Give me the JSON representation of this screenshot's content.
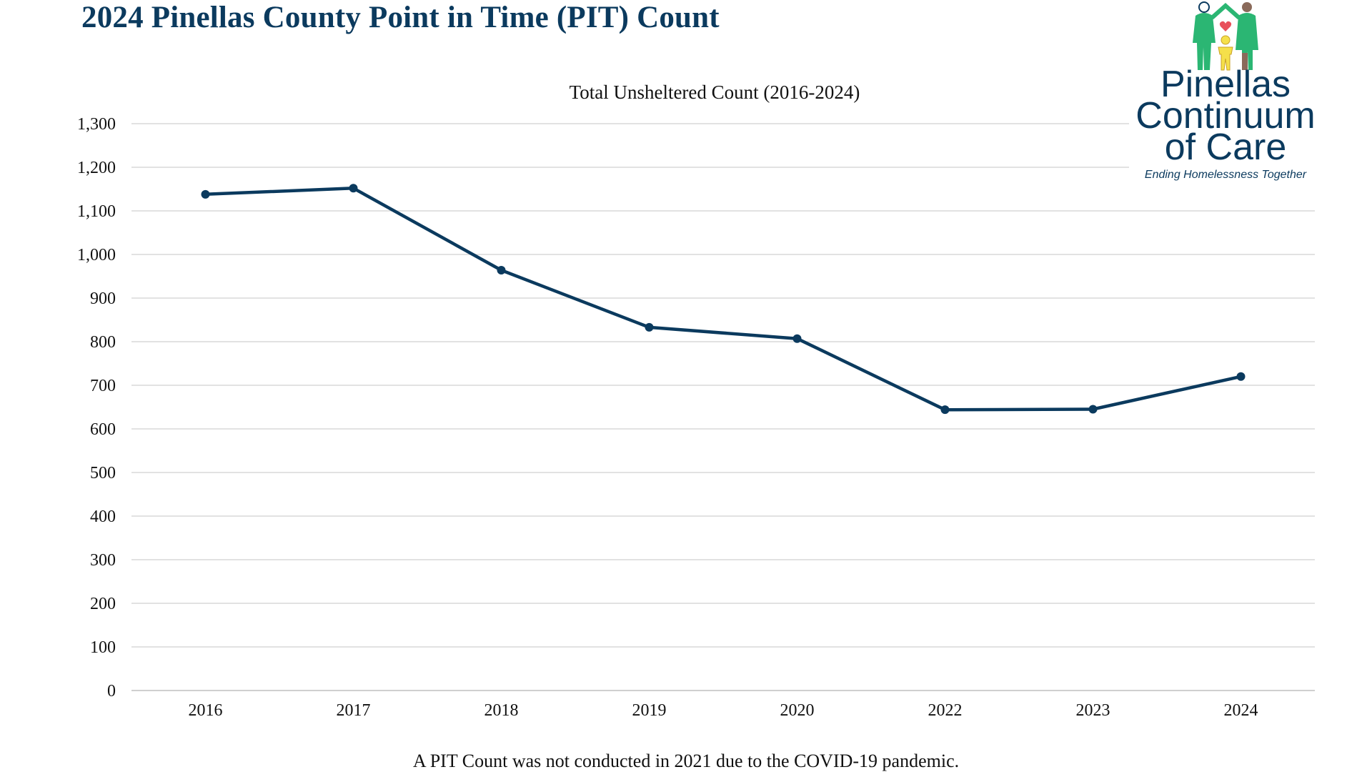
{
  "page": {
    "title": "2024 Pinellas County Point in Time (PIT) Count",
    "footnote": "A PIT Count was not conducted in 2021 due to the COVID-19 pandemic."
  },
  "logo": {
    "line1": "Pinellas",
    "line2": "Continuum",
    "line3": "of Care",
    "tagline": "Ending Homelessness Together",
    "colors": {
      "green": "#2bb673",
      "brown": "#8a6a5a",
      "yellow": "#f5e04a",
      "heart": "#e8505b",
      "text": "#0b3a5e"
    }
  },
  "chart_data": {
    "type": "line",
    "title": "Total Unsheltered Count (2016-2024)",
    "categories": [
      "2016",
      "2017",
      "2018",
      "2019",
      "2020",
      "2022",
      "2023",
      "2024"
    ],
    "series": [
      {
        "name": "Total Unsheltered Count",
        "values": [
          1138,
          1152,
          964,
          833,
          807,
          644,
          645,
          720
        ],
        "color": "#0b3a5e"
      }
    ],
    "xlabel": "",
    "ylabel": "",
    "ylim": [
      0,
      1300
    ],
    "yticks": [
      "0",
      "100",
      "200",
      "300",
      "400",
      "500",
      "600",
      "700",
      "800",
      "900",
      "1,000",
      "1,100",
      "1,200",
      "1,300"
    ],
    "grid": true,
    "legend": "none"
  }
}
